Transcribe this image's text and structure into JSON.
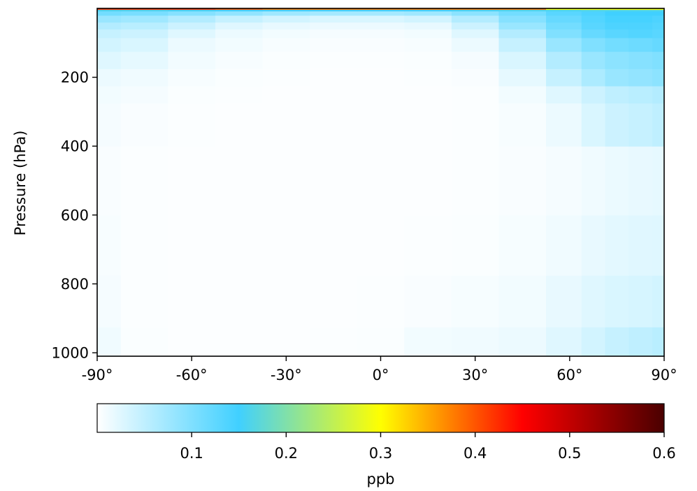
{
  "chart_data": {
    "type": "heatmap",
    "ylabel": "Pressure (hPa)",
    "x_ticks": [
      {
        "value": -90,
        "label": "-90°"
      },
      {
        "value": -60,
        "label": "-60°"
      },
      {
        "value": -30,
        "label": "-30°"
      },
      {
        "value": 0,
        "label": "0°"
      },
      {
        "value": 30,
        "label": "30°"
      },
      {
        "value": 60,
        "label": "60°"
      },
      {
        "value": 90,
        "label": "90°"
      }
    ],
    "y_ticks": [
      {
        "value": 200,
        "label": "200"
      },
      {
        "value": 400,
        "label": "400"
      },
      {
        "value": 600,
        "label": "600"
      },
      {
        "value": 800,
        "label": "800"
      },
      {
        "value": 1000,
        "label": "1000"
      }
    ],
    "xlim": [
      -90,
      90
    ],
    "ylim": [
      1010,
      0
    ],
    "latitudes": [
      -90,
      -75,
      -60,
      -45,
      -30,
      -15,
      0,
      15,
      30,
      45,
      60,
      67.5,
      75,
      82.5,
      90
    ],
    "pressure_levels": [
      1000,
      850,
      700,
      500,
      300,
      250,
      200,
      150,
      100,
      70,
      50,
      30,
      10,
      5,
      1
    ],
    "values_ppb": [
      [
        0.012,
        0.004,
        0.002,
        0.002,
        0.002,
        0.003,
        0.004,
        0.01,
        0.012,
        0.015,
        0.025,
        0.035,
        0.045,
        0.05,
        0.055
      ],
      [
        0.008,
        0.003,
        0.002,
        0.002,
        0.002,
        0.002,
        0.003,
        0.005,
        0.007,
        0.01,
        0.018,
        0.025,
        0.03,
        0.032,
        0.035
      ],
      [
        0.006,
        0.003,
        0.002,
        0.002,
        0.002,
        0.002,
        0.002,
        0.003,
        0.004,
        0.007,
        0.012,
        0.018,
        0.022,
        0.024,
        0.025
      ],
      [
        0.005,
        0.003,
        0.002,
        0.002,
        0.002,
        0.002,
        0.002,
        0.002,
        0.003,
        0.005,
        0.008,
        0.012,
        0.016,
        0.018,
        0.02
      ],
      [
        0.008,
        0.005,
        0.003,
        0.002,
        0.002,
        0.002,
        0.002,
        0.002,
        0.003,
        0.006,
        0.015,
        0.03,
        0.04,
        0.045,
        0.05
      ],
      [
        0.01,
        0.008,
        0.004,
        0.003,
        0.002,
        0.002,
        0.002,
        0.002,
        0.003,
        0.01,
        0.025,
        0.04,
        0.05,
        0.055,
        0.06
      ],
      [
        0.015,
        0.012,
        0.006,
        0.004,
        0.003,
        0.002,
        0.002,
        0.003,
        0.005,
        0.02,
        0.045,
        0.065,
        0.08,
        0.085,
        0.09
      ],
      [
        0.025,
        0.02,
        0.01,
        0.006,
        0.004,
        0.003,
        0.003,
        0.004,
        0.008,
        0.03,
        0.06,
        0.08,
        0.09,
        0.095,
        0.1
      ],
      [
        0.035,
        0.03,
        0.015,
        0.01,
        0.006,
        0.005,
        0.005,
        0.006,
        0.015,
        0.045,
        0.08,
        0.1,
        0.11,
        0.115,
        0.12
      ],
      [
        0.045,
        0.04,
        0.025,
        0.015,
        0.01,
        0.008,
        0.008,
        0.01,
        0.025,
        0.06,
        0.1,
        0.12,
        0.13,
        0.135,
        0.13
      ],
      [
        0.06,
        0.055,
        0.04,
        0.025,
        0.018,
        0.015,
        0.015,
        0.018,
        0.04,
        0.08,
        0.11,
        0.13,
        0.14,
        0.14,
        0.135
      ],
      [
        0.08,
        0.075,
        0.06,
        0.045,
        0.035,
        0.03,
        0.03,
        0.035,
        0.06,
        0.095,
        0.12,
        0.135,
        0.145,
        0.145,
        0.14
      ],
      [
        0.11,
        0.105,
        0.095,
        0.085,
        0.075,
        0.07,
        0.07,
        0.075,
        0.09,
        0.11,
        0.13,
        0.14,
        0.15,
        0.15,
        0.15
      ],
      [
        0.16,
        0.16,
        0.155,
        0.15,
        0.15,
        0.15,
        0.15,
        0.15,
        0.155,
        0.16,
        0.16,
        0.165,
        0.165,
        0.165,
        0.165
      ],
      [
        0.42,
        0.42,
        0.42,
        0.4,
        0.38,
        0.38,
        0.38,
        0.38,
        0.38,
        0.38,
        0.3,
        0.3,
        0.3,
        0.3,
        0.3
      ]
    ],
    "colorbar": {
      "label": "ppb",
      "range": [
        0,
        0.6
      ],
      "ticks": [
        {
          "value": 0.1,
          "label": "0.1"
        },
        {
          "value": 0.2,
          "label": "0.2"
        },
        {
          "value": 0.3,
          "label": "0.3"
        },
        {
          "value": 0.4,
          "label": "0.4"
        },
        {
          "value": 0.5,
          "label": "0.5"
        },
        {
          "value": 0.6,
          "label": "0.6"
        }
      ],
      "colors": [
        {
          "stop": 0.0,
          "color": "#ffffff"
        },
        {
          "stop": 0.25,
          "color": "#40d0ff"
        },
        {
          "stop": 0.5,
          "color": "#ffff00"
        },
        {
          "stop": 0.75,
          "color": "#ff0000"
        },
        {
          "stop": 1.0,
          "color": "#4a0000"
        }
      ]
    }
  }
}
